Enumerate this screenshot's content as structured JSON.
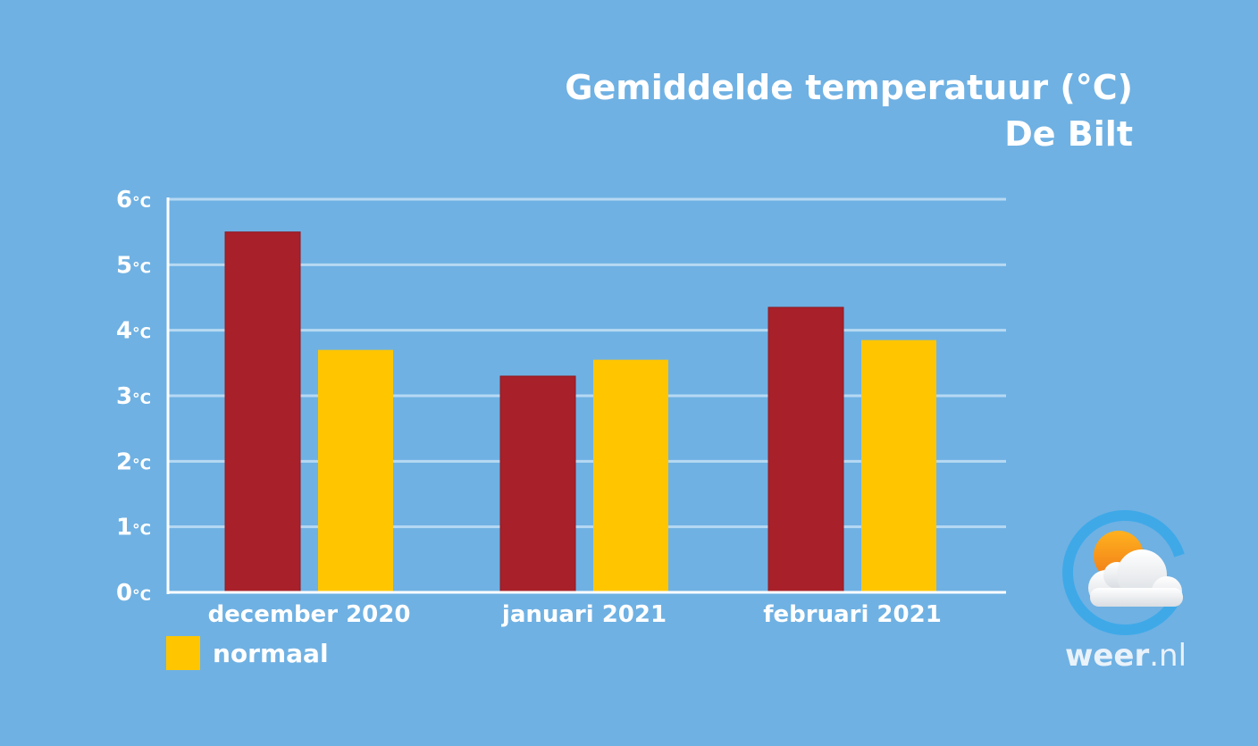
{
  "title": {
    "line1": "Gemiddelde temperatuur (°C)",
    "line2": "De Bilt"
  },
  "chart_data": {
    "type": "bar",
    "categories": [
      "december 2020",
      "januari 2021",
      "februari 2021"
    ],
    "series": [
      {
        "values": [
          5.5,
          3.3,
          4.35
        ],
        "color": "#a8202a"
      },
      {
        "name": "normaal",
        "values": [
          3.7,
          3.55,
          3.85
        ],
        "color": "#ffc600"
      }
    ],
    "ylim": [
      0,
      6
    ],
    "yticks": [
      0,
      1,
      2,
      3,
      4,
      5,
      6
    ],
    "tick_unit": "°C",
    "grid": true,
    "legend_position": "bottom-left"
  },
  "legend": {
    "label": "normaal",
    "color": "#ffc600"
  },
  "logo": {
    "text_bold": "weer",
    "text_light": ".nl"
  },
  "colors": {
    "background": "#6fb1e3",
    "gridline": "#b7d9f3",
    "axis": "#ffffff"
  }
}
